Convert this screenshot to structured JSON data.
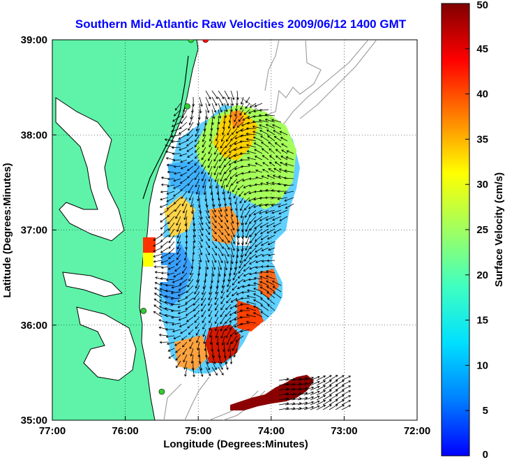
{
  "chart_data": {
    "type": "heatmap",
    "title": "Southern Mid-Atlantic Raw Velocities 2009/06/12 1400 GMT",
    "xlabel": "Longitude (Degrees:Minutes)",
    "ylabel": "Latitude (Degrees:Minutes)",
    "xlim": [
      -77,
      -72
    ],
    "ylim": [
      35,
      39
    ],
    "x_ticks": [
      {
        "value": -77,
        "label": "77:00"
      },
      {
        "value": -76,
        "label": "76:00"
      },
      {
        "value": -75,
        "label": "75:00"
      },
      {
        "value": -74,
        "label": "74:00"
      },
      {
        "value": -73,
        "label": "73:00"
      },
      {
        "value": -72,
        "label": "72:00"
      }
    ],
    "y_ticks": [
      {
        "value": 35,
        "label": "35:00"
      },
      {
        "value": 36,
        "label": "36:00"
      },
      {
        "value": 37,
        "label": "37:00"
      },
      {
        "value": 38,
        "label": "38:00"
      },
      {
        "value": 39,
        "label": "39:00"
      }
    ],
    "grid": true,
    "colorbar": {
      "label": "Surface Velocity (cm/s)",
      "range": [
        0,
        50
      ],
      "ticks": [
        0,
        5,
        10,
        15,
        20,
        25,
        30,
        35,
        40,
        45,
        50
      ],
      "colormap": "jet"
    },
    "velocity_field": [
      {
        "lon": -74.6,
        "lat": 38.2,
        "speed": 35,
        "dir": 225
      },
      {
        "lon": -74.5,
        "lat": 38.0,
        "speed": 30,
        "dir": 225
      },
      {
        "lon": -74.3,
        "lat": 37.7,
        "speed": 22,
        "dir": 200
      },
      {
        "lon": -74.0,
        "lat": 37.5,
        "speed": 20,
        "dir": 180
      },
      {
        "lon": -75.2,
        "lat": 37.8,
        "speed": 26,
        "dir": 200
      },
      {
        "lon": -75.6,
        "lat": 37.2,
        "speed": 14,
        "dir": 180
      },
      {
        "lon": -75.3,
        "lat": 37.1,
        "speed": 30,
        "dir": 190
      },
      {
        "lon": -74.7,
        "lat": 37.0,
        "speed": 38,
        "dir": 200
      },
      {
        "lon": -75.4,
        "lat": 36.6,
        "speed": 10,
        "dir": 180
      },
      {
        "lon": -75.0,
        "lat": 36.3,
        "speed": 15,
        "dir": 200
      },
      {
        "lon": -74.4,
        "lat": 36.6,
        "speed": 42,
        "dir": 160
      },
      {
        "lon": -74.6,
        "lat": 36.0,
        "speed": 40,
        "dir": 180
      },
      {
        "lon": -75.2,
        "lat": 35.8,
        "speed": 32,
        "dir": 200
      },
      {
        "lon": -74.8,
        "lat": 35.6,
        "speed": 38,
        "dir": 180
      },
      {
        "lon": -74.2,
        "lat": 35.25,
        "speed": 50,
        "dir": 90
      }
    ],
    "markers": [
      {
        "lon": -74.9,
        "lat": 39.0,
        "color": "#ff0000"
      },
      {
        "lon": -75.1,
        "lat": 39.0,
        "color": "#33cc33"
      },
      {
        "lon": -75.15,
        "lat": 38.3,
        "color": "#33cc33"
      },
      {
        "lon": -75.75,
        "lat": 36.15,
        "color": "#33cc33"
      },
      {
        "lon": -75.5,
        "lat": 35.3,
        "color": "#33cc33"
      }
    ],
    "colors": {
      "land": "#5ef3a8",
      "water": "#ffffff",
      "coast": "#000000",
      "bathymetry": "#999999",
      "title": "#0000ff",
      "grid": "#000000"
    }
  }
}
